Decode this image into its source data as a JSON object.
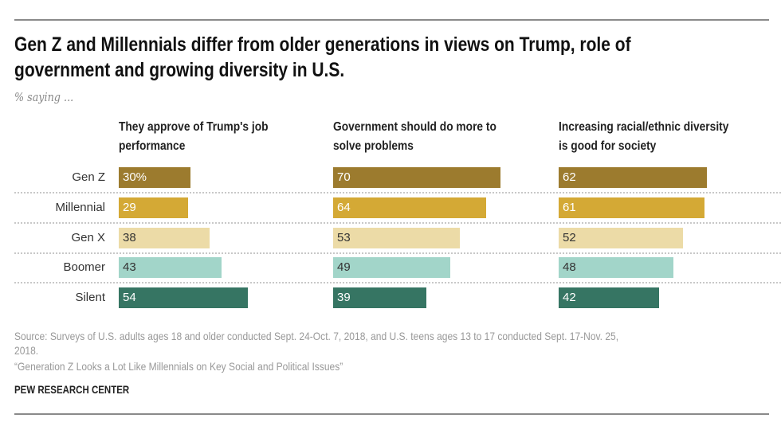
{
  "title_lines": [
    "Gen Z and Millennials differ from older generations in views on Trump, role of",
    "government and growing diversity in U.S."
  ],
  "subtitle": "% saying ...",
  "chart_data": {
    "type": "bar",
    "orientation": "horizontal",
    "title": "Gen Z and Millennials differ from older generations in views on Trump, role of government and growing diversity in U.S.",
    "subtitle": "% saying ...",
    "categories": [
      "Gen Z",
      "Millennial",
      "Gen X",
      "Boomer",
      "Silent"
    ],
    "colors": [
      "#9c7b2e",
      "#d4a935",
      "#ecdba7",
      "#a2d5c9",
      "#367563"
    ],
    "label_colors": [
      "#ffffff",
      "#ffffff",
      "#333333",
      "#333333",
      "#ffffff"
    ],
    "unit": "%",
    "panels": [
      {
        "header_lines": [
          "They approve of Trump's job",
          "performance"
        ],
        "values": [
          30,
          29,
          38,
          43,
          54
        ]
      },
      {
        "header_lines": [
          "Government should do more to",
          "solve problems"
        ],
        "values": [
          70,
          64,
          53,
          49,
          39
        ]
      },
      {
        "header_lines": [
          "Increasing racial/ethnic diversity",
          "is good for society"
        ],
        "values": [
          62,
          61,
          52,
          48,
          42
        ]
      }
    ],
    "grid": false
  },
  "footer": {
    "source_lines": [
      "Source: Surveys of U.S. adults ages 18 and older conducted Sept. 24-Oct. 7, 2018, and U.S. teens ages 13 to 17 conducted Sept. 17-Nov. 25,",
      "2018."
    ],
    "report": "“Generation Z Looks a Lot Like Millennials on Key Social and Political Issues”",
    "brand": "PEW RESEARCH CENTER"
  }
}
